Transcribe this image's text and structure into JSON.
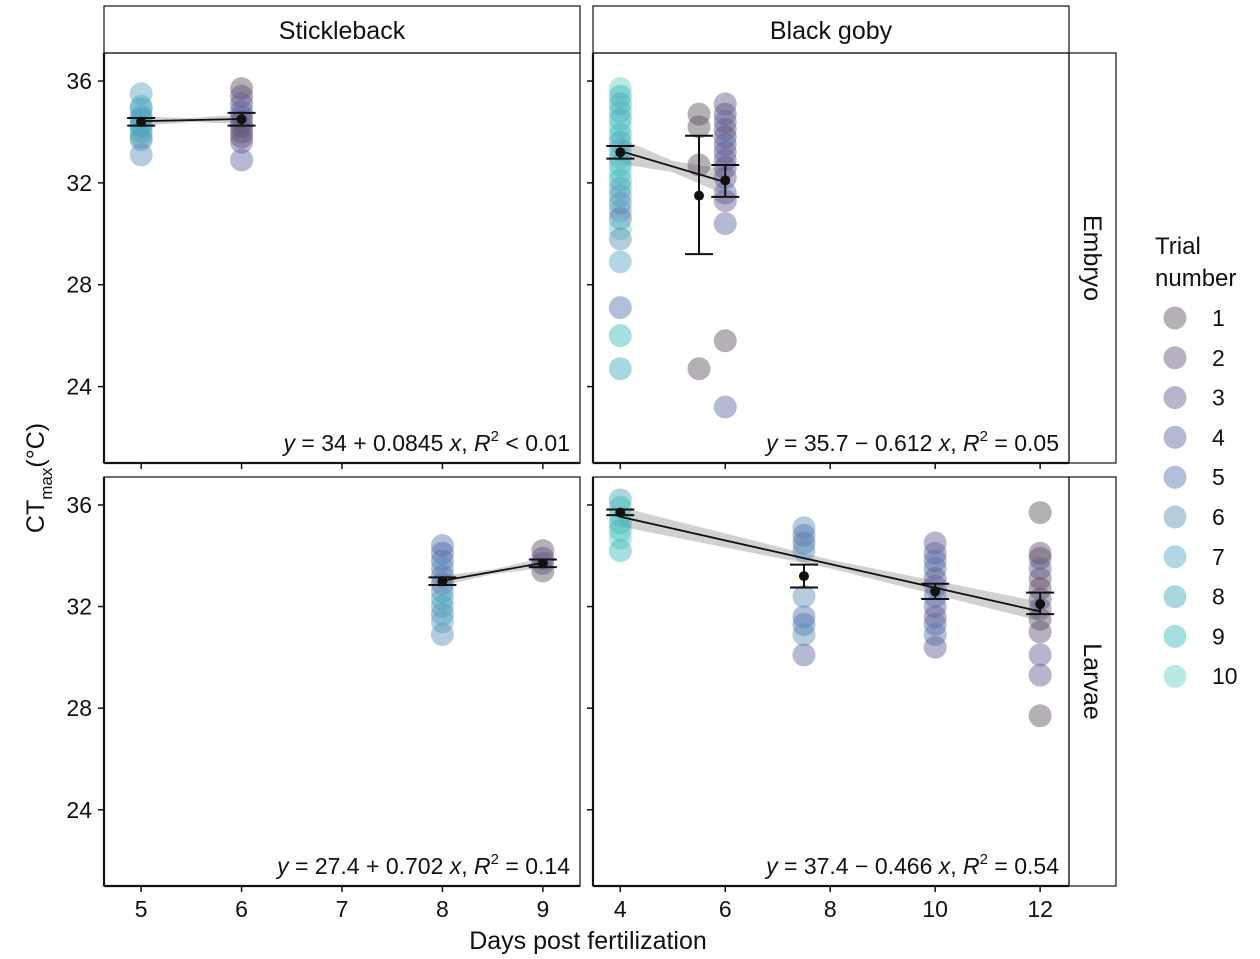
{
  "figure": {
    "y_axis_label_main": "CT",
    "y_axis_label_sub": "max",
    "y_axis_label_unit": "(°C)",
    "x_axis_label": "Days post fertilization"
  },
  "legend": {
    "title_line1": "Trial",
    "title_line2": "number",
    "items": [
      {
        "label": "1",
        "color": "#5a4e5e"
      },
      {
        "label": "2",
        "color": "#5e4f75"
      },
      {
        "label": "3",
        "color": "#62598f"
      },
      {
        "label": "4",
        "color": "#5c64a4"
      },
      {
        "label": "5",
        "color": "#4f74ae"
      },
      {
        "label": "6",
        "color": "#5b8fb6"
      },
      {
        "label": "7",
        "color": "#55a4c0"
      },
      {
        "label": "8",
        "color": "#40a7ba"
      },
      {
        "label": "9",
        "color": "#3ab9b8"
      },
      {
        "label": "10",
        "color": "#63cfc4"
      }
    ]
  },
  "chart_data": [
    {
      "type": "scatter",
      "panel_id": "stickleback-embryo",
      "column_strip": "Stickleback",
      "row_strip": "",
      "x_ticks": [
        5,
        6,
        7,
        8,
        9
      ],
      "y_ticks": [
        24,
        28,
        32,
        36
      ],
      "xlim": [
        4.63,
        9.37
      ],
      "ylim": [
        21.0,
        37.1
      ],
      "equation": {
        "lhs": "y",
        "rhs": " = 34 + 0.0845 ",
        "var": "x",
        "sep": ", ",
        "r": "R",
        "sup": "2",
        "tail": " < 0.01"
      },
      "points": [
        {
          "x": 5,
          "y": 35.5,
          "trial": 7
        },
        {
          "x": 5,
          "y": 35.0,
          "trial": 8
        },
        {
          "x": 5,
          "y": 34.9,
          "trial": 7
        },
        {
          "x": 5,
          "y": 34.6,
          "trial": 8
        },
        {
          "x": 5,
          "y": 34.5,
          "trial": 6
        },
        {
          "x": 5,
          "y": 34.3,
          "trial": 9
        },
        {
          "x": 5,
          "y": 34.2,
          "trial": 8
        },
        {
          "x": 5,
          "y": 34.0,
          "trial": 7
        },
        {
          "x": 5,
          "y": 33.8,
          "trial": 9
        },
        {
          "x": 5,
          "y": 33.7,
          "trial": 6
        },
        {
          "x": 5,
          "y": 33.1,
          "trial": 6
        },
        {
          "x": 6,
          "y": 35.7,
          "trial": 1
        },
        {
          "x": 6,
          "y": 35.4,
          "trial": 2
        },
        {
          "x": 6,
          "y": 35.1,
          "trial": 3
        },
        {
          "x": 6,
          "y": 34.8,
          "trial": 4
        },
        {
          "x": 6,
          "y": 34.6,
          "trial": 4
        },
        {
          "x": 6,
          "y": 34.4,
          "trial": 2
        },
        {
          "x": 6,
          "y": 34.2,
          "trial": 3
        },
        {
          "x": 6,
          "y": 34.0,
          "trial": 2
        },
        {
          "x": 6,
          "y": 33.8,
          "trial": 1
        },
        {
          "x": 6,
          "y": 33.6,
          "trial": 3
        },
        {
          "x": 6,
          "y": 32.9,
          "trial": 4
        }
      ],
      "means": [
        {
          "x": 5,
          "y": 34.4,
          "lo": 34.25,
          "hi": 34.55
        },
        {
          "x": 6,
          "y": 34.5,
          "lo": 34.25,
          "hi": 34.75
        }
      ],
      "trend": {
        "x0": 5,
        "x1": 6,
        "band": 0.18
      }
    },
    {
      "type": "scatter",
      "panel_id": "goby-embryo",
      "column_strip": "Black goby",
      "row_strip": "Embryo",
      "x_ticks": [
        4,
        6,
        8,
        10,
        12
      ],
      "y_ticks": [
        24,
        28,
        32,
        36
      ],
      "xlim": [
        3.48,
        12.55
      ],
      "ylim": [
        21.0,
        37.1
      ],
      "equation": {
        "lhs": "y",
        "rhs": " = 35.7 − 0.612 ",
        "var": "x",
        "sep": ", ",
        "r": "R",
        "sup": "2",
        "tail": " = 0.05"
      },
      "points": [
        {
          "x": 4,
          "y": 35.7,
          "trial": 10
        },
        {
          "x": 4,
          "y": 35.4,
          "trial": 9
        },
        {
          "x": 4,
          "y": 35.1,
          "trial": 8
        },
        {
          "x": 4,
          "y": 34.8,
          "trial": 9
        },
        {
          "x": 4,
          "y": 34.5,
          "trial": 8
        },
        {
          "x": 4,
          "y": 34.2,
          "trial": 10
        },
        {
          "x": 4,
          "y": 33.9,
          "trial": 9
        },
        {
          "x": 4,
          "y": 33.6,
          "trial": 8
        },
        {
          "x": 4,
          "y": 33.3,
          "trial": 7
        },
        {
          "x": 4,
          "y": 33.0,
          "trial": 9
        },
        {
          "x": 4,
          "y": 32.7,
          "trial": 8
        },
        {
          "x": 4,
          "y": 32.4,
          "trial": 10
        },
        {
          "x": 4,
          "y": 32.1,
          "trial": 9
        },
        {
          "x": 4,
          "y": 31.8,
          "trial": 7
        },
        {
          "x": 4,
          "y": 31.5,
          "trial": 8
        },
        {
          "x": 4,
          "y": 31.2,
          "trial": 6
        },
        {
          "x": 4,
          "y": 30.9,
          "trial": 7
        },
        {
          "x": 4,
          "y": 30.6,
          "trial": 5
        },
        {
          "x": 4,
          "y": 30.2,
          "trial": 10
        },
        {
          "x": 4,
          "y": 29.8,
          "trial": 6
        },
        {
          "x": 4,
          "y": 28.9,
          "trial": 7
        },
        {
          "x": 4,
          "y": 27.1,
          "trial": 5
        },
        {
          "x": 4,
          "y": 26.0,
          "trial": 9
        },
        {
          "x": 4,
          "y": 24.7,
          "trial": 8
        },
        {
          "x": 5.5,
          "y": 34.7,
          "trial": 1
        },
        {
          "x": 5.5,
          "y": 34.2,
          "trial": 1
        },
        {
          "x": 5.5,
          "y": 32.7,
          "trial": 1
        },
        {
          "x": 5.5,
          "y": 24.7,
          "trial": 1
        },
        {
          "x": 6,
          "y": 35.1,
          "trial": 3
        },
        {
          "x": 6,
          "y": 34.7,
          "trial": 2
        },
        {
          "x": 6,
          "y": 34.4,
          "trial": 4
        },
        {
          "x": 6,
          "y": 34.1,
          "trial": 3
        },
        {
          "x": 6,
          "y": 33.8,
          "trial": 2
        },
        {
          "x": 6,
          "y": 33.5,
          "trial": 4
        },
        {
          "x": 6,
          "y": 33.2,
          "trial": 3
        },
        {
          "x": 6,
          "y": 32.9,
          "trial": 4
        },
        {
          "x": 6,
          "y": 32.6,
          "trial": 2
        },
        {
          "x": 6,
          "y": 32.2,
          "trial": 3
        },
        {
          "x": 6,
          "y": 31.6,
          "trial": 4
        },
        {
          "x": 6,
          "y": 31.3,
          "trial": 3
        },
        {
          "x": 6,
          "y": 30.4,
          "trial": 4
        },
        {
          "x": 6,
          "y": 25.8,
          "trial": 1
        },
        {
          "x": 6,
          "y": 23.2,
          "trial": 4
        }
      ],
      "means": [
        {
          "x": 4,
          "y": 33.2,
          "lo": 32.95,
          "hi": 33.45
        },
        {
          "x": 5.5,
          "y": 31.5,
          "lo": 29.2,
          "hi": 33.85
        },
        {
          "x": 6,
          "y": 32.1,
          "lo": 31.45,
          "hi": 32.7
        }
      ],
      "trend": {
        "x0": 4,
        "x1": 6,
        "band": 0.5
      }
    },
    {
      "type": "scatter",
      "panel_id": "stickleback-larvae",
      "column_strip": "",
      "row_strip": "",
      "x_ticks": [
        5,
        6,
        7,
        8,
        9
      ],
      "y_ticks": [
        24,
        28,
        32,
        36
      ],
      "xlim": [
        4.63,
        9.37
      ],
      "ylim": [
        21.0,
        37.1
      ],
      "equation": {
        "lhs": "y",
        "rhs": " = 27.4 + 0.702 ",
        "var": "x",
        "sep": ", ",
        "r": "R",
        "sup": "2",
        "tail": " = 0.14"
      },
      "points": [
        {
          "x": 8,
          "y": 34.4,
          "trial": 5
        },
        {
          "x": 8,
          "y": 34.1,
          "trial": 4
        },
        {
          "x": 8,
          "y": 33.8,
          "trial": 5
        },
        {
          "x": 8,
          "y": 33.5,
          "trial": 6
        },
        {
          "x": 8,
          "y": 33.2,
          "trial": 5
        },
        {
          "x": 8,
          "y": 32.9,
          "trial": 4
        },
        {
          "x": 8,
          "y": 32.6,
          "trial": 6
        },
        {
          "x": 8,
          "y": 32.3,
          "trial": 7
        },
        {
          "x": 8,
          "y": 32.0,
          "trial": 8
        },
        {
          "x": 8,
          "y": 31.7,
          "trial": 6
        },
        {
          "x": 8,
          "y": 31.4,
          "trial": 7
        },
        {
          "x": 8,
          "y": 30.9,
          "trial": 6
        },
        {
          "x": 9,
          "y": 34.2,
          "trial": 1
        },
        {
          "x": 9,
          "y": 33.9,
          "trial": 2
        },
        {
          "x": 9,
          "y": 33.7,
          "trial": 3
        },
        {
          "x": 9,
          "y": 33.4,
          "trial": 1
        }
      ],
      "means": [
        {
          "x": 8,
          "y": 33.0,
          "lo": 32.85,
          "hi": 33.15
        },
        {
          "x": 9,
          "y": 33.7,
          "lo": 33.55,
          "hi": 33.85
        }
      ],
      "trend": {
        "x0": 8,
        "x1": 9,
        "band": 0.2
      }
    },
    {
      "type": "scatter",
      "panel_id": "goby-larvae",
      "column_strip": "",
      "row_strip": "Larvae",
      "x_ticks": [
        4,
        6,
        8,
        10,
        12
      ],
      "y_ticks": [
        24,
        28,
        32,
        36
      ],
      "xlim": [
        3.48,
        12.55
      ],
      "ylim": [
        21.0,
        37.1
      ],
      "equation": {
        "lhs": "y",
        "rhs": " = 37.4 − 0.466 ",
        "var": "x",
        "sep": ", ",
        "r": "R",
        "sup": "2",
        "tail": " = 0.54"
      },
      "points": [
        {
          "x": 4,
          "y": 36.2,
          "trial": 8
        },
        {
          "x": 4,
          "y": 35.9,
          "trial": 9
        },
        {
          "x": 4,
          "y": 35.6,
          "trial": 10
        },
        {
          "x": 4,
          "y": 35.3,
          "trial": 8
        },
        {
          "x": 4,
          "y": 35.0,
          "trial": 9
        },
        {
          "x": 4,
          "y": 34.7,
          "trial": 10
        },
        {
          "x": 4,
          "y": 34.2,
          "trial": 9
        },
        {
          "x": 7.5,
          "y": 35.1,
          "trial": 6
        },
        {
          "x": 7.5,
          "y": 34.8,
          "trial": 5
        },
        {
          "x": 7.5,
          "y": 34.5,
          "trial": 5
        },
        {
          "x": 7.5,
          "y": 34.2,
          "trial": 6
        },
        {
          "x": 7.5,
          "y": 32.4,
          "trial": 6
        },
        {
          "x": 7.5,
          "y": 31.6,
          "trial": 5
        },
        {
          "x": 7.5,
          "y": 31.3,
          "trial": 5
        },
        {
          "x": 7.5,
          "y": 30.9,
          "trial": 6
        },
        {
          "x": 7.5,
          "y": 30.1,
          "trial": 4
        },
        {
          "x": 10,
          "y": 34.5,
          "trial": 3
        },
        {
          "x": 10,
          "y": 34.1,
          "trial": 4
        },
        {
          "x": 10,
          "y": 33.8,
          "trial": 4
        },
        {
          "x": 10,
          "y": 33.5,
          "trial": 5
        },
        {
          "x": 10,
          "y": 33.1,
          "trial": 3
        },
        {
          "x": 10,
          "y": 32.8,
          "trial": 4
        },
        {
          "x": 10,
          "y": 32.4,
          "trial": 5
        },
        {
          "x": 10,
          "y": 32.0,
          "trial": 4
        },
        {
          "x": 10,
          "y": 31.6,
          "trial": 3
        },
        {
          "x": 10,
          "y": 31.3,
          "trial": 4
        },
        {
          "x": 10,
          "y": 30.9,
          "trial": 5
        },
        {
          "x": 10,
          "y": 30.4,
          "trial": 3
        },
        {
          "x": 12,
          "y": 35.7,
          "trial": 1
        },
        {
          "x": 12,
          "y": 34.1,
          "trial": 2
        },
        {
          "x": 12,
          "y": 33.9,
          "trial": 1
        },
        {
          "x": 12,
          "y": 33.5,
          "trial": 3
        },
        {
          "x": 12,
          "y": 33.1,
          "trial": 2
        },
        {
          "x": 12,
          "y": 32.7,
          "trial": 1
        },
        {
          "x": 12,
          "y": 32.3,
          "trial": 2
        },
        {
          "x": 12,
          "y": 31.9,
          "trial": 3
        },
        {
          "x": 12,
          "y": 31.5,
          "trial": 1
        },
        {
          "x": 12,
          "y": 31.0,
          "trial": 2
        },
        {
          "x": 12,
          "y": 30.1,
          "trial": 3
        },
        {
          "x": 12,
          "y": 29.3,
          "trial": 3
        },
        {
          "x": 12,
          "y": 27.7,
          "trial": 1
        }
      ],
      "means": [
        {
          "x": 4,
          "y": 35.7,
          "lo": 35.6,
          "hi": 35.82
        },
        {
          "x": 7.5,
          "y": 33.2,
          "lo": 32.75,
          "hi": 33.65
        },
        {
          "x": 10,
          "y": 32.6,
          "lo": 32.3,
          "hi": 32.9
        },
        {
          "x": 12,
          "y": 32.1,
          "lo": 31.7,
          "hi": 32.55
        }
      ],
      "trend": {
        "x0": 4,
        "x1": 12,
        "band": 0.38
      }
    }
  ]
}
